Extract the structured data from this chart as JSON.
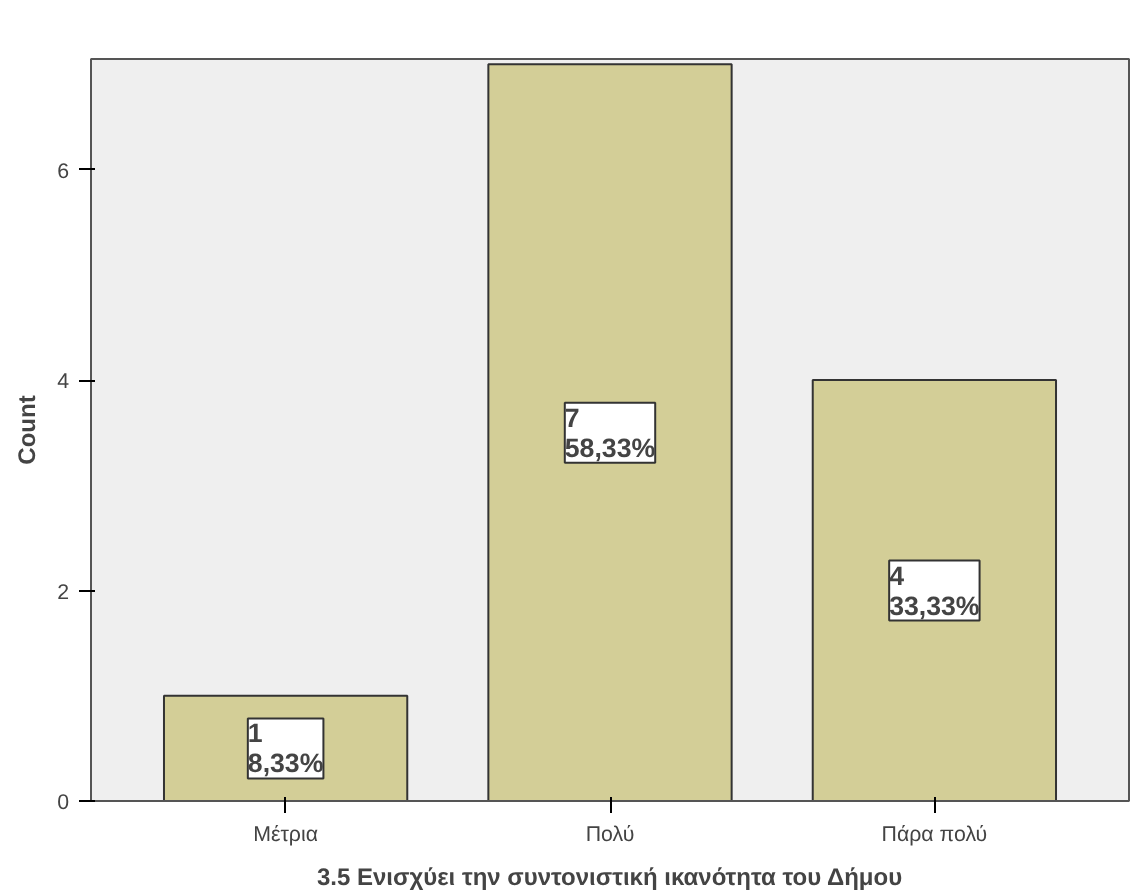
{
  "chart_data": {
    "type": "bar",
    "xlabel": "3.5 Ενισχύει την συντονιστική ικανότητα του Δήμου",
    "ylabel": "Count",
    "categories": [
      "Μέτρια",
      "Πολύ",
      "Πάρα πολύ"
    ],
    "values": [
      1,
      7,
      4
    ],
    "color": "#d3ce97",
    "value_labels": [
      "1\n8,33%",
      "7\n58,33%",
      "4\n33,33%"
    ],
    "ylim": [
      0,
      7.05
    ],
    "yticks": [
      0,
      2,
      4,
      6
    ],
    "grid": false
  }
}
